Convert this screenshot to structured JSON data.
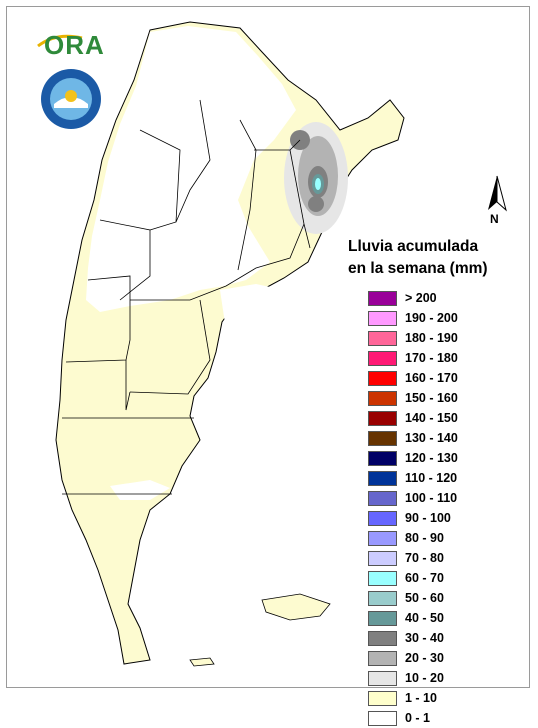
{
  "brand": {
    "logo_text": "ORA",
    "seal_text": "SERVICIO METEOROLÓGICO NACIONAL"
  },
  "north_arrow": {
    "letter": "N"
  },
  "legend": {
    "title_line1": "Lluvia acumulada",
    "title_line2": "en la semana (mm)",
    "items": [
      {
        "label": "> 200",
        "color": "#990099"
      },
      {
        "label": "190 - 200",
        "color": "#ff99ff"
      },
      {
        "label": "180 - 190",
        "color": "#ff6699"
      },
      {
        "label": "170 - 180",
        "color": "#ff1a75"
      },
      {
        "label": "160 - 170",
        "color": "#ff0000"
      },
      {
        "label": "150 - 160",
        "color": "#cc3300"
      },
      {
        "label": "140 - 150",
        "color": "#990000"
      },
      {
        "label": "130 - 140",
        "color": "#663300"
      },
      {
        "label": "120 - 130",
        "color": "#000066"
      },
      {
        "label": "110 - 120",
        "color": "#003399"
      },
      {
        "label": "100 - 110",
        "color": "#6666cc"
      },
      {
        "label": "90 - 100",
        "color": "#6666ff"
      },
      {
        "label": "80 - 90",
        "color": "#9999ff"
      },
      {
        "label": "70 - 80",
        "color": "#ccccff"
      },
      {
        "label": "60 - 70",
        "color": "#99ffff"
      },
      {
        "label": "50 - 60",
        "color": "#99cccc"
      },
      {
        "label": "40 - 50",
        "color": "#669999"
      },
      {
        "label": "30 - 40",
        "color": "#808080"
      },
      {
        "label": "20 - 30",
        "color": "#b3b3b3"
      },
      {
        "label": "10 - 20",
        "color": "#e6e6e6"
      },
      {
        "label": "1 - 10",
        "color": "#ffffcc"
      },
      {
        "label": "0 - 1",
        "color": "#ffffff"
      }
    ]
  }
}
